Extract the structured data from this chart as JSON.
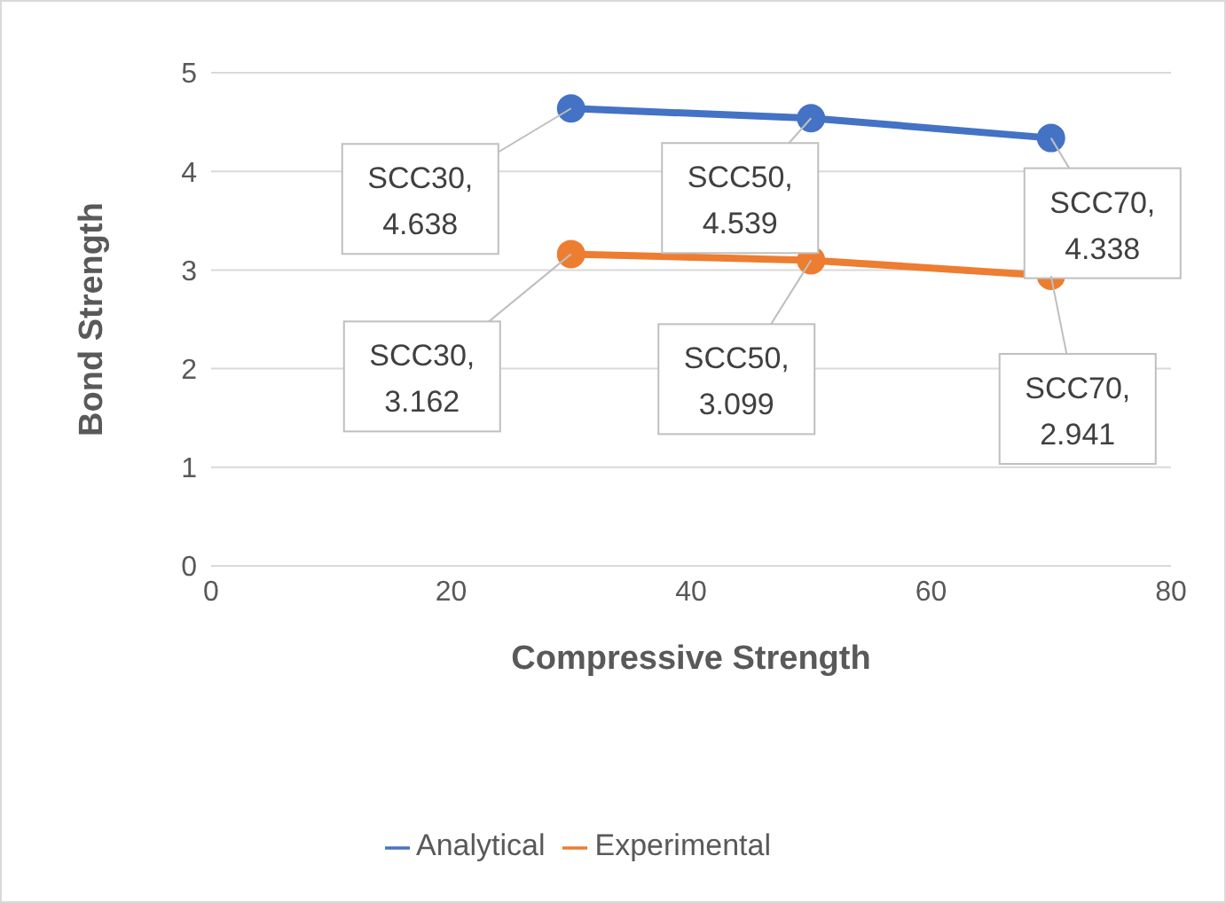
{
  "chart_data": {
    "type": "line",
    "xlabel": "Compressive Strength",
    "ylabel": "Bond Strength",
    "x": [
      30,
      50,
      70
    ],
    "xlim": [
      0,
      80
    ],
    "xticks": [
      0,
      20,
      40,
      60,
      80
    ],
    "ylim": [
      0,
      5
    ],
    "yticks": [
      0,
      1,
      2,
      3,
      4,
      5
    ],
    "grid": "y",
    "legend": "bottom",
    "marker": "circle",
    "line_style": "solid",
    "series": [
      {
        "name": "Analytical",
        "color": "#4472c4",
        "values": [
          4.638,
          4.539,
          4.338
        ],
        "value_labels": [
          "SCC30, 4.638",
          "SCC50, 4.539",
          "SCC70, 4.338"
        ]
      },
      {
        "name": "Experimental",
        "color": "#ed7d31",
        "values": [
          3.162,
          3.099,
          2.941
        ],
        "value_labels": [
          "SCC30, 3.162",
          "SCC50, 3.099",
          "SCC70, 2.941"
        ]
      }
    ]
  }
}
